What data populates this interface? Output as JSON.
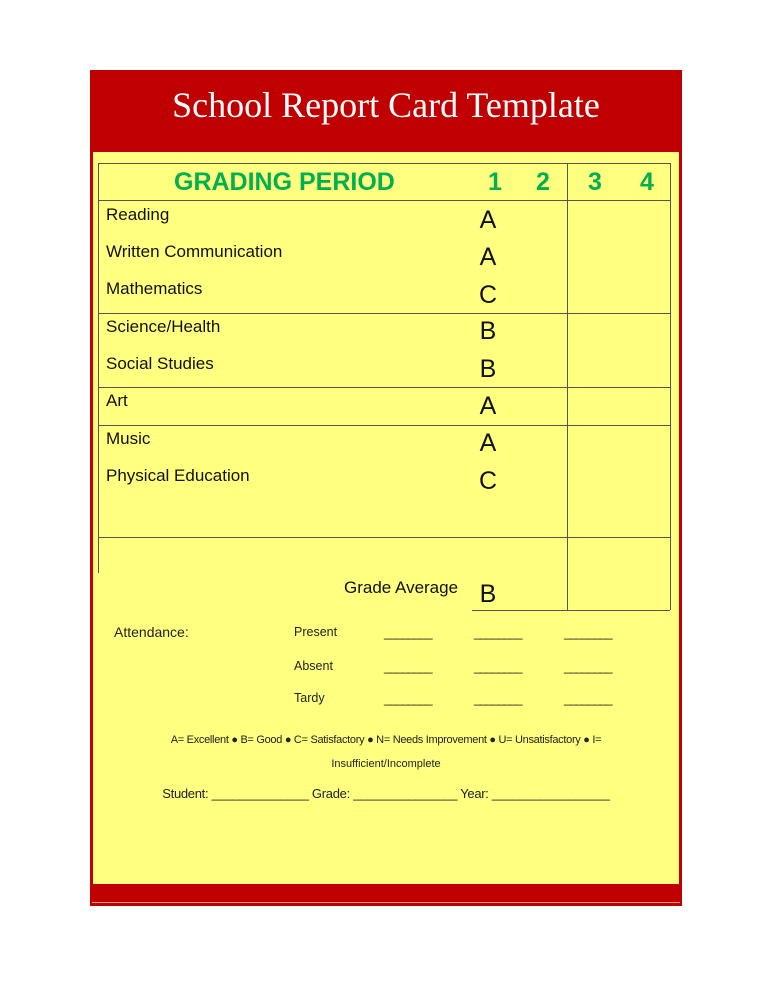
{
  "title": "School Report Card Template",
  "header": {
    "label": "GRADING PERIOD",
    "periods": [
      "1",
      "2",
      "3",
      "4"
    ]
  },
  "subjects": [
    {
      "name": "Reading",
      "grade": "A"
    },
    {
      "name": "Written Communication",
      "grade": "A"
    },
    {
      "name": "Mathematics",
      "grade": "C"
    },
    {
      "name": "Science/Health",
      "grade": "B"
    },
    {
      "name": "Social Studies",
      "grade": "B"
    },
    {
      "name": "Art",
      "grade": "A"
    },
    {
      "name": "Music",
      "grade": "A"
    },
    {
      "name": "Physical Education",
      "grade": "C"
    }
  ],
  "average": {
    "label": "Grade Average",
    "grade": "B"
  },
  "attendance": {
    "label": "Attendance:",
    "rows": [
      "Present",
      "Absent",
      "Tardy"
    ],
    "blank": "________"
  },
  "legend": {
    "line1": "A= Excellent ●  B= Good ●  C= Satisfactory ●  N= Needs Improvement ●  U= Unsatisfactory ●  I=",
    "line2": "Insufficient/Incomplete"
  },
  "footer": "Student: ______________ Grade: _______________ Year: _________________",
  "colors": {
    "frame": "#c00000",
    "paper": "#ffff80",
    "header": "#00b050"
  }
}
